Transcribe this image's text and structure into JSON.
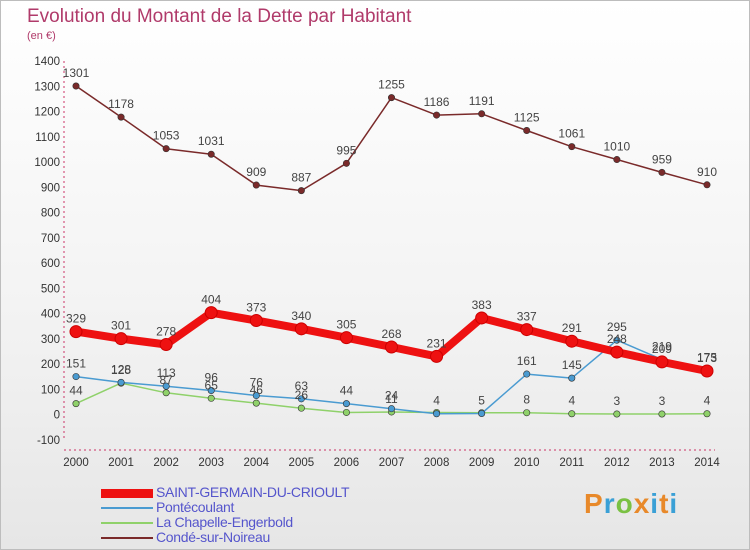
{
  "header": {
    "title": "Evolution du Montant de la Dette par Habitant",
    "subtitle": "(en €)"
  },
  "logo": {
    "text": "Proxiti",
    "colors": [
      "#e8892a",
      "#3aa0d6",
      "#7ac143",
      "#e8892a",
      "#3aa0d6",
      "#e8892a",
      "#3aa0d6"
    ]
  },
  "chart_data": {
    "type": "line",
    "title": "Evolution du Montant de la Dette par Habitant",
    "subtitle": "(en €)",
    "x": [
      "2000",
      "2001",
      "2002",
      "2003",
      "2004",
      "2005",
      "2006",
      "2007",
      "2008",
      "2009",
      "2010",
      "2011",
      "2012",
      "2013",
      "2014"
    ],
    "ylim": [
      -100,
      1400
    ],
    "yticks": [
      -100,
      0,
      100,
      200,
      300,
      400,
      500,
      600,
      700,
      800,
      900,
      1000,
      1100,
      1200,
      1300,
      1400
    ],
    "grid": false,
    "legend_position": "bottom-left",
    "series": [
      {
        "name": "Condé-sur-Noireau",
        "color": "#7a2a2a",
        "values": [
          1301,
          1178,
          1053,
          1031,
          909,
          887,
          995,
          1255,
          1186,
          1191,
          1125,
          1061,
          1010,
          959,
          910
        ],
        "labels": [
          "1301",
          "1178",
          "1053",
          "1031",
          "909",
          "887",
          "995",
          "1255",
          "1186",
          "1191",
          "1125",
          "1061",
          "1010",
          "959",
          "910"
        ]
      },
      {
        "name": "La Chapelle-Engerbold",
        "color": "#8fd16a",
        "values": [
          44,
          125,
          87,
          65,
          46,
          26,
          9,
          11,
          9,
          8,
          8,
          4,
          3,
          3,
          4
        ],
        "labels": [
          "44",
          "125",
          "87",
          "65",
          "46",
          "26",
          "",
          "11",
          "",
          "",
          "8",
          "4",
          "3",
          "3",
          "4"
        ]
      },
      {
        "name": "Pontécoulant",
        "color": "#4a9bd1",
        "values": [
          151,
          128,
          113,
          96,
          76,
          63,
          44,
          24,
          4,
          5,
          161,
          145,
          295,
          219,
          175
        ],
        "labels": [
          "151",
          "128",
          "113",
          "96",
          "76",
          "63",
          "44",
          "24",
          "4",
          "5",
          "161",
          "145",
          "295",
          "219",
          "175"
        ]
      },
      {
        "name": "SAINT-GERMAIN-DU-CRIOULT",
        "color": "#ee1111",
        "values": [
          329,
          301,
          278,
          404,
          373,
          340,
          305,
          268,
          231,
          383,
          337,
          291,
          248,
          209,
          173
        ],
        "labels": [
          "329",
          "301",
          "278",
          "404",
          "373",
          "340",
          "305",
          "268",
          "231",
          "383",
          "337",
          "291",
          "248",
          "209",
          "173"
        ]
      }
    ],
    "legend": [
      "SAINT-GERMAIN-DU-CRIOULT",
      "Pontécoulant",
      "La Chapelle-Engerbold",
      "Condé-sur-Noireau"
    ]
  }
}
